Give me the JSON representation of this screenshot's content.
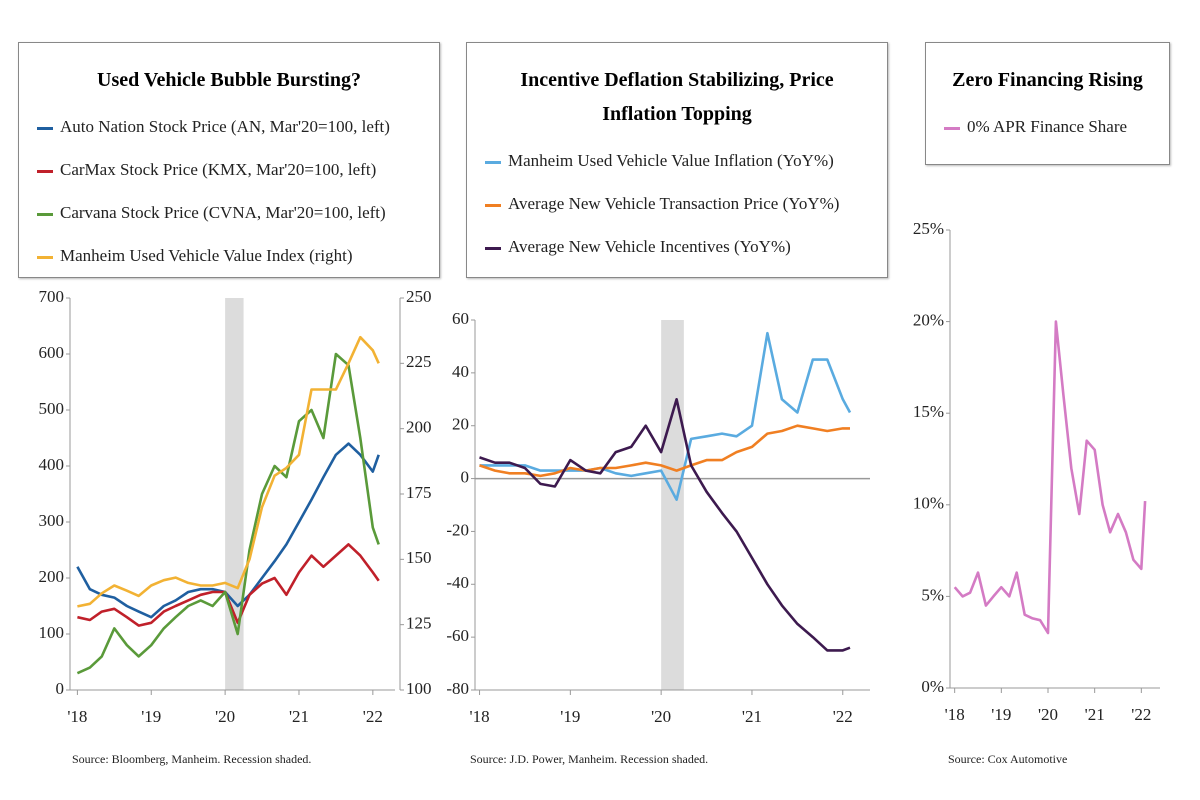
{
  "chart_data": [
    {
      "type": "line",
      "title": "Used Vehicle Bubble Bursting?",
      "source": "Source:  Bloomberg, Manheim. Recession shaded.",
      "x": [
        2018,
        2018.17,
        2018.33,
        2018.5,
        2018.67,
        2018.83,
        2019,
        2019.17,
        2019.33,
        2019.5,
        2019.67,
        2019.83,
        2020,
        2020.17,
        2020.33,
        2020.5,
        2020.67,
        2020.83,
        2021,
        2021.17,
        2021.33,
        2021.5,
        2021.67,
        2021.83,
        2022,
        2022.08
      ],
      "xlim": [
        2017.9,
        2022.3
      ],
      "xticks": [
        {
          "value": 2018,
          "label": "'18"
        },
        {
          "value": 2019,
          "label": "'19"
        },
        {
          "value": 2020,
          "label": "'20"
        },
        {
          "value": 2021,
          "label": "'21"
        },
        {
          "value": 2022,
          "label": "'22"
        }
      ],
      "ylim": [
        0,
        700
      ],
      "yticks": [
        0,
        100,
        200,
        300,
        400,
        500,
        600,
        700
      ],
      "y2lim": [
        100,
        250
      ],
      "y2ticks": [
        100,
        125,
        150,
        175,
        200,
        225,
        250
      ],
      "shade": [
        2020,
        2020.25
      ],
      "series": [
        {
          "name": "Auto Nation Stock Price (AN, Mar'20=100, left)",
          "color": "#1f5fa0",
          "values": [
            220,
            180,
            170,
            165,
            150,
            140,
            130,
            150,
            160,
            175,
            180,
            180,
            175,
            150,
            170,
            200,
            230,
            260,
            300,
            340,
            380,
            420,
            440,
            420,
            390,
            420
          ]
        },
        {
          "name": "CarMax Stock Price (KMX, Mar'20=100, left)",
          "color": "#c0202a",
          "values": [
            130,
            125,
            140,
            145,
            130,
            115,
            120,
            140,
            150,
            160,
            170,
            175,
            175,
            120,
            170,
            190,
            200,
            170,
            210,
            240,
            220,
            240,
            260,
            240,
            210,
            195
          ]
        },
        {
          "name": "Carvana Stock Price (CVNA, Mar'20=100, left)",
          "color": "#5a9a3a",
          "values": [
            30,
            40,
            60,
            110,
            80,
            60,
            80,
            110,
            130,
            150,
            160,
            150,
            175,
            100,
            250,
            350,
            400,
            380,
            480,
            500,
            450,
            600,
            580,
            450,
            290,
            260
          ]
        },
        {
          "name": "Manheim Used Vehicle Value Index (right)",
          "color": "#f2b234",
          "axis": "y2",
          "values": [
            132,
            133,
            137,
            140,
            138,
            136,
            140,
            142,
            143,
            141,
            140,
            140,
            141,
            139,
            150,
            170,
            182,
            185,
            190,
            215,
            215,
            215,
            225,
            235,
            230,
            225
          ]
        }
      ]
    },
    {
      "type": "line",
      "title": "Incentive Deflation Stabilizing, Price Inflation Topping",
      "source": "Source:  J.D. Power, Manheim. Recession shaded.",
      "x": [
        2018,
        2018.17,
        2018.33,
        2018.5,
        2018.67,
        2018.83,
        2019,
        2019.17,
        2019.33,
        2019.5,
        2019.67,
        2019.83,
        2020,
        2020.17,
        2020.33,
        2020.5,
        2020.67,
        2020.83,
        2021,
        2021.17,
        2021.33,
        2021.5,
        2021.67,
        2021.83,
        2022,
        2022.08
      ],
      "xlim": [
        2017.95,
        2022.3
      ],
      "xticks": [
        {
          "value": 2018,
          "label": "'18"
        },
        {
          "value": 2019,
          "label": "'19"
        },
        {
          "value": 2020,
          "label": "'20"
        },
        {
          "value": 2021,
          "label": "'21"
        },
        {
          "value": 2022,
          "label": "'22"
        }
      ],
      "ylim": [
        -80,
        60
      ],
      "yticks": [
        -80,
        -60,
        -40,
        -20,
        0,
        20,
        40,
        60
      ],
      "zero_line": true,
      "shade": [
        2020,
        2020.25
      ],
      "series": [
        {
          "name": "Manheim Used Vehicle Value Inflation (YoY%)",
          "color": "#5aabe0",
          "values": [
            5,
            5,
            5,
            5,
            3,
            3,
            3,
            3,
            4,
            2,
            1,
            2,
            3,
            -8,
            15,
            16,
            17,
            16,
            20,
            55,
            30,
            25,
            45,
            45,
            30,
            25
          ]
        },
        {
          "name": "Average New Vehicle Transaction Price (YoY%)",
          "color": "#f07f22",
          "values": [
            5,
            3,
            2,
            2,
            1,
            2,
            4,
            3,
            4,
            4,
            5,
            6,
            5,
            3,
            5,
            7,
            7,
            10,
            12,
            17,
            18,
            20,
            19,
            18,
            19,
            19
          ]
        },
        {
          "name": "Average New Vehicle Incentives (YoY%)",
          "color": "#3d1a4f",
          "values": [
            8,
            6,
            6,
            4,
            -2,
            -3,
            7,
            3,
            2,
            10,
            12,
            20,
            10,
            30,
            5,
            -5,
            -13,
            -20,
            -30,
            -40,
            -48,
            -55,
            -60,
            -65,
            -65,
            -64
          ]
        }
      ]
    },
    {
      "type": "line",
      "title": "Zero Financing Rising",
      "source": "Source:  Cox Automotive",
      "x": [
        2018,
        2018.17,
        2018.33,
        2018.5,
        2018.67,
        2018.83,
        2019,
        2019.17,
        2019.33,
        2019.5,
        2019.67,
        2019.83,
        2020,
        2020.17,
        2020.33,
        2020.5,
        2020.67,
        2020.83,
        2021,
        2021.17,
        2021.33,
        2021.5,
        2021.67,
        2021.83,
        2022,
        2022.08
      ],
      "xlim": [
        2017.9,
        2022.4
      ],
      "xticks": [
        {
          "value": 2018,
          "label": "'18"
        },
        {
          "value": 2019,
          "label": "'19"
        },
        {
          "value": 2020,
          "label": "'20"
        },
        {
          "value": 2021,
          "label": "'21"
        },
        {
          "value": 2022,
          "label": "'22"
        }
      ],
      "ylim": [
        0,
        25
      ],
      "yticks": [
        {
          "value": 0,
          "label": "0%"
        },
        {
          "value": 5,
          "label": "5%"
        },
        {
          "value": 10,
          "label": "10%"
        },
        {
          "value": 15,
          "label": "15%"
        },
        {
          "value": 20,
          "label": "20%"
        },
        {
          "value": 25,
          "label": "25%"
        }
      ],
      "series": [
        {
          "name": "0% APR Finance Share",
          "color": "#d47bc4",
          "values": [
            5.5,
            5,
            5.2,
            6.3,
            4.5,
            5,
            5.5,
            5,
            6.3,
            4,
            3.8,
            3.7,
            3,
            20,
            16,
            12,
            9.5,
            13.5,
            13,
            10,
            8.5,
            9.5,
            8.5,
            7,
            6.5,
            10.2
          ]
        }
      ]
    }
  ]
}
